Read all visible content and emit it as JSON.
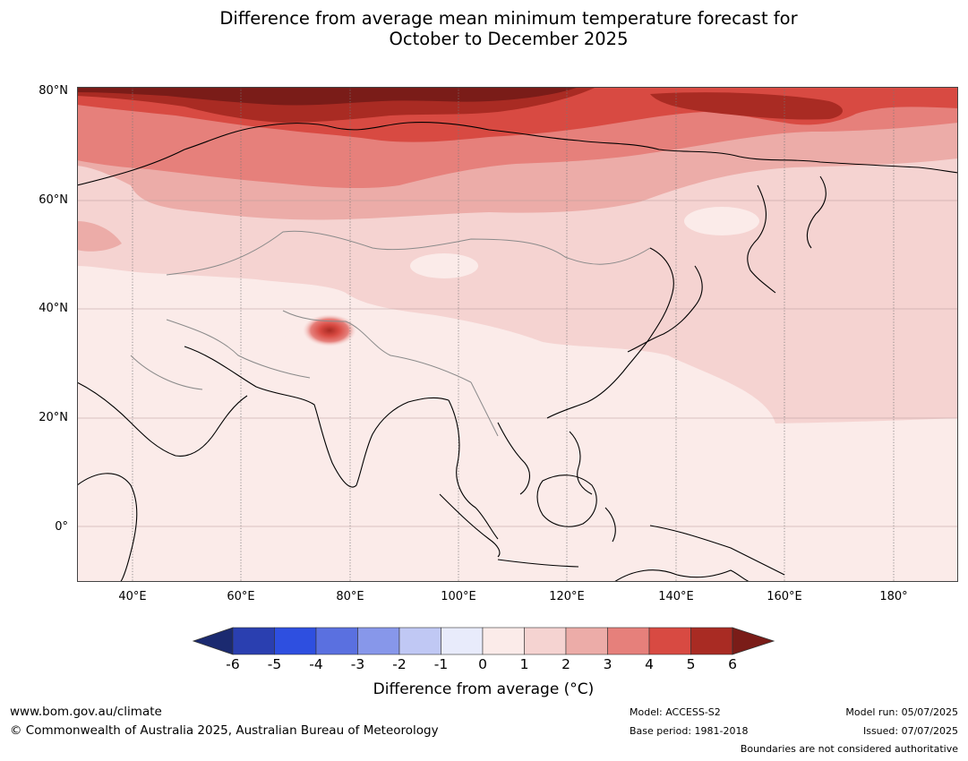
{
  "title": {
    "line1": "Difference from average mean minimum temperature forecast for",
    "line2": "October to December 2025"
  },
  "map": {
    "lat_labels": [
      "80°N",
      "60°N",
      "40°N",
      "20°N",
      "0°"
    ],
    "lon_labels": [
      "40°E",
      "60°E",
      "80°E",
      "100°E",
      "120°E",
      "140°E",
      "160°E",
      "180°"
    ],
    "extent": {
      "lon": [
        30,
        192
      ],
      "lat": [
        -10,
        80
      ]
    }
  },
  "colorbar": {
    "ticks": [
      "-6",
      "-5",
      "-4",
      "-3",
      "-2",
      "-1",
      "0",
      "1",
      "2",
      "3",
      "4",
      "5",
      "6"
    ],
    "colors": [
      "#1b2a70",
      "#2a3fb0",
      "#2e4fe0",
      "#5a70e0",
      "#8797ea",
      "#c0c8f4",
      "#e8ebfb",
      "#fbebe9",
      "#f5d3d1",
      "#ecaca8",
      "#e6807b",
      "#d84a42",
      "#a92b23",
      "#7a1c18"
    ],
    "label": "Difference from average (°C)"
  },
  "footer": {
    "website": "www.bom.gov.au/climate",
    "copyright": "© Commonwealth of Australia 2025, Australian Bureau of Meteorology",
    "model": "Model: ACCESS-S2",
    "base_period": "Base period: 1981-2018",
    "model_run": "Model run: 05/07/2025",
    "issued": "Issued: 07/07/2025",
    "disclaimer": "Boundaries are not considered authoritative"
  }
}
